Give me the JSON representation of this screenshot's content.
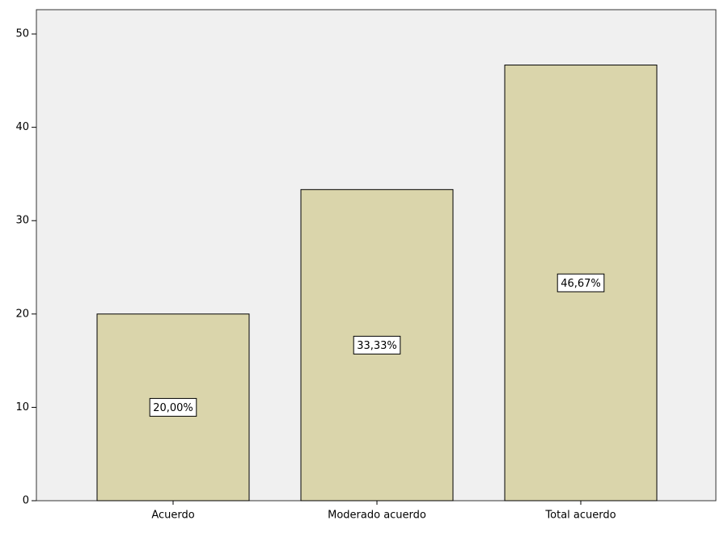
{
  "chart_data": {
    "type": "bar",
    "categories": [
      "Acuerdo",
      "Moderado acuerdo",
      "Total acuerdo"
    ],
    "values": [
      20.0,
      33.33,
      46.67
    ],
    "value_labels": [
      "20,00%",
      "33,33%",
      "46,67%"
    ],
    "color": "#dad5ab",
    "ylim": [
      0,
      52.6
    ],
    "yticks": [
      0,
      10,
      20,
      30,
      40,
      50
    ],
    "grid": false
  }
}
